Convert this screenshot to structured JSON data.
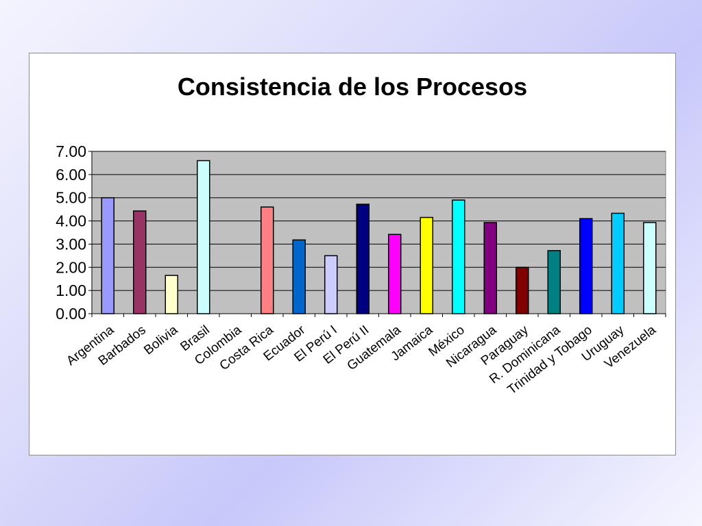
{
  "chart_data": {
    "type": "bar",
    "title": "Consistencia de los Procesos",
    "xlabel": "",
    "ylabel": "",
    "ylim": [
      0,
      7
    ],
    "yticks": [
      "0.00",
      "1.00",
      "2.00",
      "3.00",
      "4.00",
      "5.00",
      "6.00",
      "7.00"
    ],
    "grid": true,
    "legend": "none",
    "plot_background": "#c0c0c0",
    "categories": [
      "Argentina",
      "Barbados",
      "Bolivia",
      "Brasil",
      "Colombia",
      "Costa Rica",
      "Ecuador",
      "El Perú I",
      "El Perú II",
      "Guatemala",
      "Jamaica",
      "México",
      "Nicaragua",
      "Paraguay",
      "R. Dominicana",
      "Trinidad y Tobago",
      "Uruguay",
      "Venezuela"
    ],
    "values": [
      5.0,
      4.43,
      1.65,
      6.6,
      0,
      4.6,
      3.18,
      2.5,
      4.72,
      3.42,
      4.15,
      4.9,
      3.93,
      2.0,
      2.72,
      4.1,
      4.33,
      3.93
    ],
    "colors": [
      "#9999ff",
      "#993366",
      "#ffffcc",
      "#ccffff",
      "#660066",
      "#ff8080",
      "#0066cc",
      "#ccccff",
      "#000080",
      "#ff00ff",
      "#ffff00",
      "#00ffff",
      "#800080",
      "#800000",
      "#008080",
      "#0000ff",
      "#00ccff",
      "#ccffff"
    ]
  }
}
